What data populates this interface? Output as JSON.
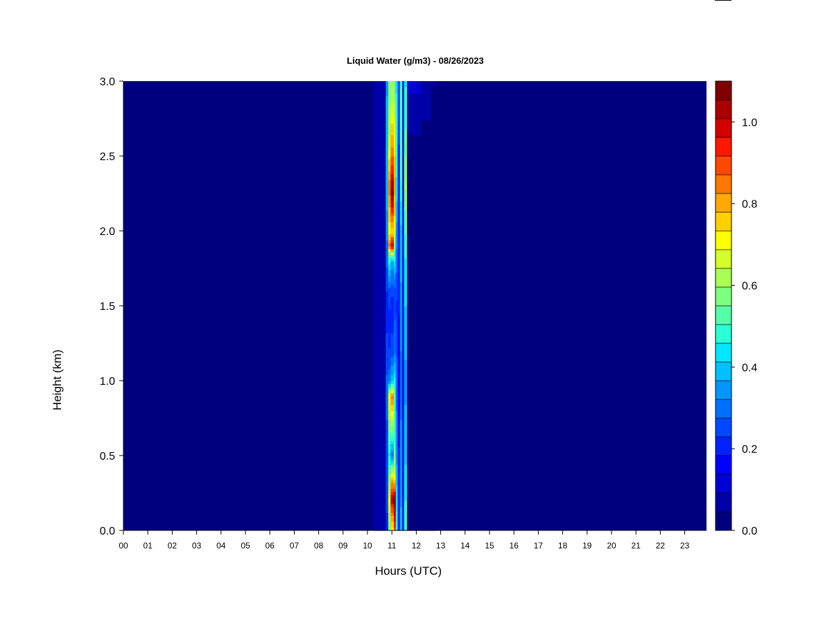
{
  "chart_data": {
    "type": "heatmap",
    "title": "Liquid Water (g/m3) - 08/26/2023",
    "xlabel": "Hours (UTC)",
    "ylabel": "Height (km)",
    "x_ticks": [
      "00",
      "01",
      "02",
      "03",
      "04",
      "05",
      "06",
      "07",
      "08",
      "09",
      "10",
      "11",
      "12",
      "13",
      "14",
      "15",
      "16",
      "17",
      "18",
      "19",
      "20",
      "21",
      "22",
      "23"
    ],
    "y_ticks": [
      "0.0",
      "0.5",
      "1.0",
      "1.5",
      "2.0",
      "2.5",
      "3.0"
    ],
    "xlim": [
      0,
      23.9
    ],
    "ylim": [
      0,
      3.0
    ],
    "background_value": 0.0,
    "colorbar": {
      "range": [
        0.0,
        1.1
      ],
      "ticks": [
        "0.0",
        "0.2",
        "0.4",
        "0.6",
        "0.8",
        "1.0"
      ],
      "colors": [
        "#00007f",
        "#0000a8",
        "#0000d4",
        "#0000ff",
        "#0022ff",
        "#0048ff",
        "#0070ff",
        "#0098ff",
        "#00c0ff",
        "#00e8ff",
        "#2affd5",
        "#55ffaa",
        "#7fff80",
        "#aaff55",
        "#d5ff2a",
        "#ffff00",
        "#ffd000",
        "#ffa800",
        "#ff7800",
        "#ff4800",
        "#ff1800",
        "#d40000",
        "#aa0000",
        "#7f0000"
      ]
    },
    "columns": [
      {
        "x0": 10.25,
        "x1": 10.75,
        "profile": [
          [
            0,
            0.06
          ],
          [
            3.0,
            0.06
          ]
        ]
      },
      {
        "x0": 10.75,
        "x1": 10.85,
        "profile": [
          [
            0,
            0.2
          ],
          [
            0.2,
            0.25
          ],
          [
            0.6,
            0.25
          ],
          [
            0.9,
            0.3
          ],
          [
            1.5,
            0.2
          ],
          [
            1.85,
            0.3
          ],
          [
            2.3,
            0.4
          ],
          [
            2.7,
            0.4
          ],
          [
            3.0,
            0.35
          ]
        ]
      },
      {
        "x0": 10.85,
        "x1": 10.95,
        "profile": [
          [
            0,
            0.55
          ],
          [
            0.2,
            0.7
          ],
          [
            0.5,
            0.45
          ],
          [
            0.9,
            0.7
          ],
          [
            1.0,
            0.3
          ],
          [
            1.3,
            0.2
          ],
          [
            1.6,
            0.25
          ],
          [
            1.85,
            0.55
          ],
          [
            1.9,
            0.85
          ],
          [
            2.0,
            0.7
          ],
          [
            2.3,
            0.85
          ],
          [
            2.6,
            0.65
          ],
          [
            3.0,
            0.55
          ]
        ]
      },
      {
        "x0": 10.95,
        "x1": 11.08,
        "profile": [
          [
            0,
            0.7
          ],
          [
            0.15,
            0.9
          ],
          [
            0.2,
            1.05
          ],
          [
            0.35,
            0.75
          ],
          [
            0.5,
            0.3
          ],
          [
            0.7,
            0.6
          ],
          [
            0.9,
            0.85
          ],
          [
            1.0,
            0.4
          ],
          [
            1.2,
            0.25
          ],
          [
            1.5,
            0.2
          ],
          [
            1.8,
            0.35
          ],
          [
            1.9,
            1.0
          ],
          [
            2.0,
            0.75
          ],
          [
            2.25,
            1.08
          ],
          [
            2.4,
            0.95
          ],
          [
            2.6,
            0.8
          ],
          [
            2.9,
            0.62
          ],
          [
            3.0,
            0.6
          ]
        ]
      },
      {
        "x0": 11.08,
        "x1": 11.16,
        "profile": [
          [
            0,
            0.9
          ],
          [
            0.2,
            1.1
          ],
          [
            0.35,
            0.7
          ],
          [
            0.6,
            0.5
          ],
          [
            0.9,
            0.55
          ],
          [
            1.2,
            0.3
          ],
          [
            1.6,
            0.25
          ],
          [
            1.85,
            0.5
          ],
          [
            2.0,
            0.7
          ],
          [
            2.3,
            0.8
          ],
          [
            2.6,
            0.7
          ],
          [
            3.0,
            0.55
          ]
        ]
      },
      {
        "x0": 11.16,
        "x1": 11.24,
        "profile": [
          [
            0,
            0.5
          ],
          [
            0.5,
            0.35
          ],
          [
            1.0,
            0.3
          ],
          [
            1.5,
            0.22
          ],
          [
            2.0,
            0.35
          ],
          [
            2.5,
            0.5
          ],
          [
            3.0,
            0.45
          ]
        ]
      },
      {
        "x0": 11.24,
        "x1": 11.33,
        "profile": [
          [
            0,
            0.2
          ],
          [
            1.0,
            0.17
          ],
          [
            2.0,
            0.2
          ],
          [
            3.0,
            0.25
          ]
        ]
      },
      {
        "x0": 11.33,
        "x1": 11.43,
        "profile": [
          [
            0,
            0.38
          ],
          [
            1.0,
            0.3
          ],
          [
            2.0,
            0.4
          ],
          [
            2.5,
            0.55
          ],
          [
            3.0,
            0.5
          ]
        ]
      },
      {
        "x0": 11.43,
        "x1": 11.5,
        "profile": [
          [
            0,
            0.15
          ],
          [
            3.0,
            0.15
          ]
        ]
      },
      {
        "x0": 11.5,
        "x1": 11.62,
        "profile": [
          [
            0,
            0.5
          ],
          [
            0.5,
            0.4
          ],
          [
            1.0,
            0.35
          ],
          [
            1.8,
            0.45
          ],
          [
            2.3,
            0.6
          ],
          [
            2.7,
            0.5
          ],
          [
            3.0,
            0.45
          ]
        ]
      },
      {
        "x0": 11.62,
        "x1": 12.2,
        "profile": [
          [
            0,
            0.0
          ],
          [
            2.5,
            0.0
          ],
          [
            2.7,
            0.07
          ],
          [
            3.0,
            0.1
          ]
        ]
      },
      {
        "x0": 12.2,
        "x1": 12.6,
        "profile": [
          [
            0,
            0.0
          ],
          [
            2.55,
            0.0
          ],
          [
            2.75,
            0.05
          ],
          [
            3.0,
            0.08
          ]
        ]
      },
      {
        "x0": 12.6,
        "x1": 12.8,
        "profile": [
          [
            0,
            0.0
          ],
          [
            2.8,
            0.0
          ],
          [
            3.0,
            0.05
          ]
        ]
      }
    ]
  }
}
